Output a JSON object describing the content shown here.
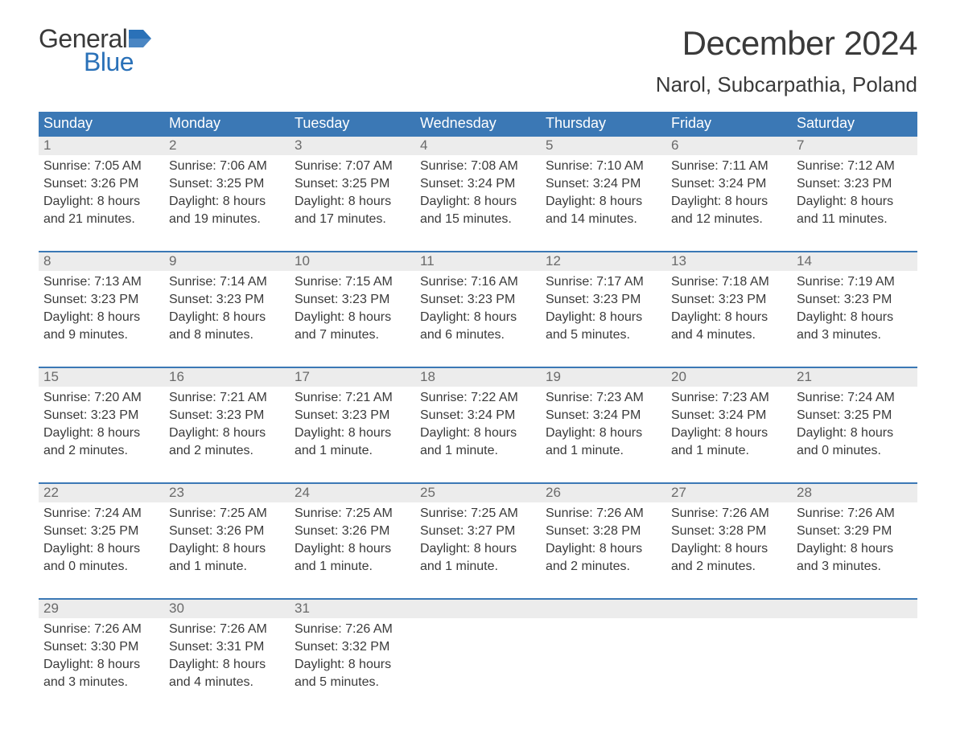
{
  "logo": {
    "text_general": "General",
    "text_blue": "Blue"
  },
  "title": "December 2024",
  "location": "Narol, Subcarpathia, Poland",
  "colors": {
    "header_bg": "#3b78b5",
    "header_text": "#ffffff",
    "daynum_bg": "#ececec",
    "daynum_text": "#6a6a6a",
    "body_text": "#3a3a3a",
    "week_border": "#3b78b5",
    "logo_blue": "#2a71b8"
  },
  "days_of_week": [
    "Sunday",
    "Monday",
    "Tuesday",
    "Wednesday",
    "Thursday",
    "Friday",
    "Saturday"
  ],
  "weeks": [
    [
      {
        "n": "1",
        "sunrise": "Sunrise: 7:05 AM",
        "sunset": "Sunset: 3:26 PM",
        "d1": "Daylight: 8 hours",
        "d2": "and 21 minutes."
      },
      {
        "n": "2",
        "sunrise": "Sunrise: 7:06 AM",
        "sunset": "Sunset: 3:25 PM",
        "d1": "Daylight: 8 hours",
        "d2": "and 19 minutes."
      },
      {
        "n": "3",
        "sunrise": "Sunrise: 7:07 AM",
        "sunset": "Sunset: 3:25 PM",
        "d1": "Daylight: 8 hours",
        "d2": "and 17 minutes."
      },
      {
        "n": "4",
        "sunrise": "Sunrise: 7:08 AM",
        "sunset": "Sunset: 3:24 PM",
        "d1": "Daylight: 8 hours",
        "d2": "and 15 minutes."
      },
      {
        "n": "5",
        "sunrise": "Sunrise: 7:10 AM",
        "sunset": "Sunset: 3:24 PM",
        "d1": "Daylight: 8 hours",
        "d2": "and 14 minutes."
      },
      {
        "n": "6",
        "sunrise": "Sunrise: 7:11 AM",
        "sunset": "Sunset: 3:24 PM",
        "d1": "Daylight: 8 hours",
        "d2": "and 12 minutes."
      },
      {
        "n": "7",
        "sunrise": "Sunrise: 7:12 AM",
        "sunset": "Sunset: 3:23 PM",
        "d1": "Daylight: 8 hours",
        "d2": "and 11 minutes."
      }
    ],
    [
      {
        "n": "8",
        "sunrise": "Sunrise: 7:13 AM",
        "sunset": "Sunset: 3:23 PM",
        "d1": "Daylight: 8 hours",
        "d2": "and 9 minutes."
      },
      {
        "n": "9",
        "sunrise": "Sunrise: 7:14 AM",
        "sunset": "Sunset: 3:23 PM",
        "d1": "Daylight: 8 hours",
        "d2": "and 8 minutes."
      },
      {
        "n": "10",
        "sunrise": "Sunrise: 7:15 AM",
        "sunset": "Sunset: 3:23 PM",
        "d1": "Daylight: 8 hours",
        "d2": "and 7 minutes."
      },
      {
        "n": "11",
        "sunrise": "Sunrise: 7:16 AM",
        "sunset": "Sunset: 3:23 PM",
        "d1": "Daylight: 8 hours",
        "d2": "and 6 minutes."
      },
      {
        "n": "12",
        "sunrise": "Sunrise: 7:17 AM",
        "sunset": "Sunset: 3:23 PM",
        "d1": "Daylight: 8 hours",
        "d2": "and 5 minutes."
      },
      {
        "n": "13",
        "sunrise": "Sunrise: 7:18 AM",
        "sunset": "Sunset: 3:23 PM",
        "d1": "Daylight: 8 hours",
        "d2": "and 4 minutes."
      },
      {
        "n": "14",
        "sunrise": "Sunrise: 7:19 AM",
        "sunset": "Sunset: 3:23 PM",
        "d1": "Daylight: 8 hours",
        "d2": "and 3 minutes."
      }
    ],
    [
      {
        "n": "15",
        "sunrise": "Sunrise: 7:20 AM",
        "sunset": "Sunset: 3:23 PM",
        "d1": "Daylight: 8 hours",
        "d2": "and 2 minutes."
      },
      {
        "n": "16",
        "sunrise": "Sunrise: 7:21 AM",
        "sunset": "Sunset: 3:23 PM",
        "d1": "Daylight: 8 hours",
        "d2": "and 2 minutes."
      },
      {
        "n": "17",
        "sunrise": "Sunrise: 7:21 AM",
        "sunset": "Sunset: 3:23 PM",
        "d1": "Daylight: 8 hours",
        "d2": "and 1 minute."
      },
      {
        "n": "18",
        "sunrise": "Sunrise: 7:22 AM",
        "sunset": "Sunset: 3:24 PM",
        "d1": "Daylight: 8 hours",
        "d2": "and 1 minute."
      },
      {
        "n": "19",
        "sunrise": "Sunrise: 7:23 AM",
        "sunset": "Sunset: 3:24 PM",
        "d1": "Daylight: 8 hours",
        "d2": "and 1 minute."
      },
      {
        "n": "20",
        "sunrise": "Sunrise: 7:23 AM",
        "sunset": "Sunset: 3:24 PM",
        "d1": "Daylight: 8 hours",
        "d2": "and 1 minute."
      },
      {
        "n": "21",
        "sunrise": "Sunrise: 7:24 AM",
        "sunset": "Sunset: 3:25 PM",
        "d1": "Daylight: 8 hours",
        "d2": "and 0 minutes."
      }
    ],
    [
      {
        "n": "22",
        "sunrise": "Sunrise: 7:24 AM",
        "sunset": "Sunset: 3:25 PM",
        "d1": "Daylight: 8 hours",
        "d2": "and 0 minutes."
      },
      {
        "n": "23",
        "sunrise": "Sunrise: 7:25 AM",
        "sunset": "Sunset: 3:26 PM",
        "d1": "Daylight: 8 hours",
        "d2": "and 1 minute."
      },
      {
        "n": "24",
        "sunrise": "Sunrise: 7:25 AM",
        "sunset": "Sunset: 3:26 PM",
        "d1": "Daylight: 8 hours",
        "d2": "and 1 minute."
      },
      {
        "n": "25",
        "sunrise": "Sunrise: 7:25 AM",
        "sunset": "Sunset: 3:27 PM",
        "d1": "Daylight: 8 hours",
        "d2": "and 1 minute."
      },
      {
        "n": "26",
        "sunrise": "Sunrise: 7:26 AM",
        "sunset": "Sunset: 3:28 PM",
        "d1": "Daylight: 8 hours",
        "d2": "and 2 minutes."
      },
      {
        "n": "27",
        "sunrise": "Sunrise: 7:26 AM",
        "sunset": "Sunset: 3:28 PM",
        "d1": "Daylight: 8 hours",
        "d2": "and 2 minutes."
      },
      {
        "n": "28",
        "sunrise": "Sunrise: 7:26 AM",
        "sunset": "Sunset: 3:29 PM",
        "d1": "Daylight: 8 hours",
        "d2": "and 3 minutes."
      }
    ],
    [
      {
        "n": "29",
        "sunrise": "Sunrise: 7:26 AM",
        "sunset": "Sunset: 3:30 PM",
        "d1": "Daylight: 8 hours",
        "d2": "and 3 minutes."
      },
      {
        "n": "30",
        "sunrise": "Sunrise: 7:26 AM",
        "sunset": "Sunset: 3:31 PM",
        "d1": "Daylight: 8 hours",
        "d2": "and 4 minutes."
      },
      {
        "n": "31",
        "sunrise": "Sunrise: 7:26 AM",
        "sunset": "Sunset: 3:32 PM",
        "d1": "Daylight: 8 hours",
        "d2": "and 5 minutes."
      },
      {
        "n": "",
        "sunrise": "",
        "sunset": "",
        "d1": "",
        "d2": ""
      },
      {
        "n": "",
        "sunrise": "",
        "sunset": "",
        "d1": "",
        "d2": ""
      },
      {
        "n": "",
        "sunrise": "",
        "sunset": "",
        "d1": "",
        "d2": ""
      },
      {
        "n": "",
        "sunrise": "",
        "sunset": "",
        "d1": "",
        "d2": ""
      }
    ]
  ]
}
